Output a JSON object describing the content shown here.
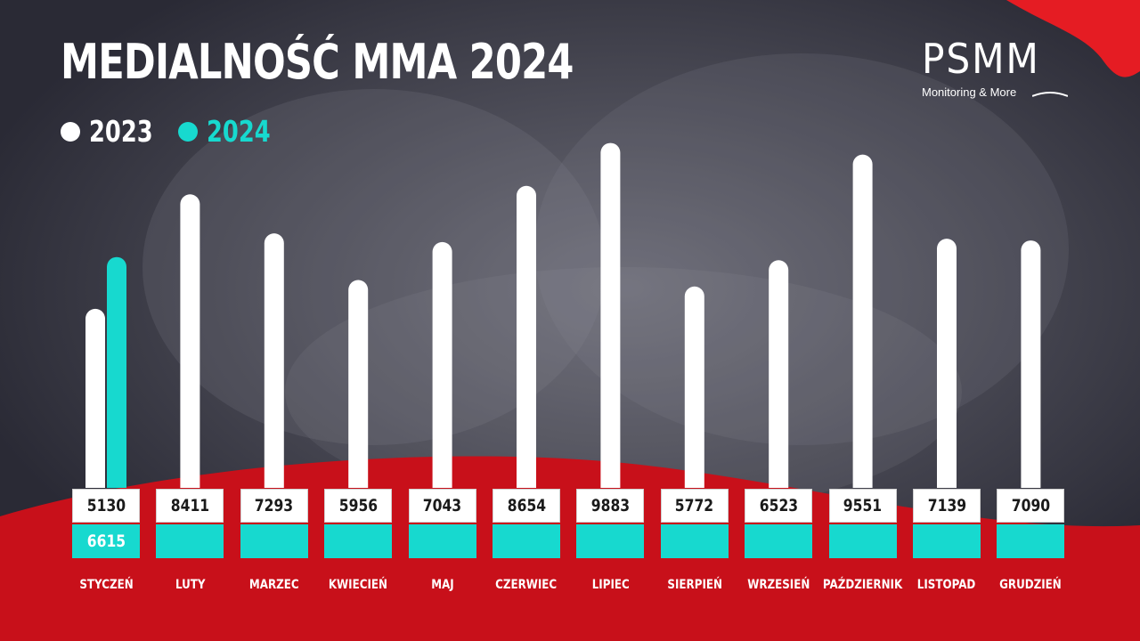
{
  "title": "MEDIALNOŚĆ MMA 2024",
  "logo": {
    "name": "PSMM",
    "tagline": "Monitoring & More"
  },
  "colors": {
    "series_2023": "#ffffff",
    "series_2024": "#17d9cf",
    "accent_red": "#d0101a",
    "background": "#2c2c38"
  },
  "chart_data": {
    "type": "bar",
    "categories": [
      "STYCZEŃ",
      "LUTY",
      "MARZEC",
      "KWIECIEŃ",
      "MAJ",
      "CZERWIEC",
      "LIPIEC",
      "SIERPIEŃ",
      "WRZESIEŃ",
      "PAŹDZIERNIK",
      "LISTOPAD",
      "GRUDZIEŃ"
    ],
    "series": [
      {
        "name": "2023",
        "color": "#ffffff",
        "values": [
          5130,
          8411,
          7293,
          5956,
          7043,
          8654,
          9883,
          5772,
          6523,
          9551,
          7139,
          7090
        ]
      },
      {
        "name": "2024",
        "color": "#17d9cf",
        "values": [
          6615,
          null,
          null,
          null,
          null,
          null,
          null,
          null,
          null,
          null,
          null,
          null
        ]
      }
    ],
    "legend_position": "top-left",
    "grid": false
  }
}
